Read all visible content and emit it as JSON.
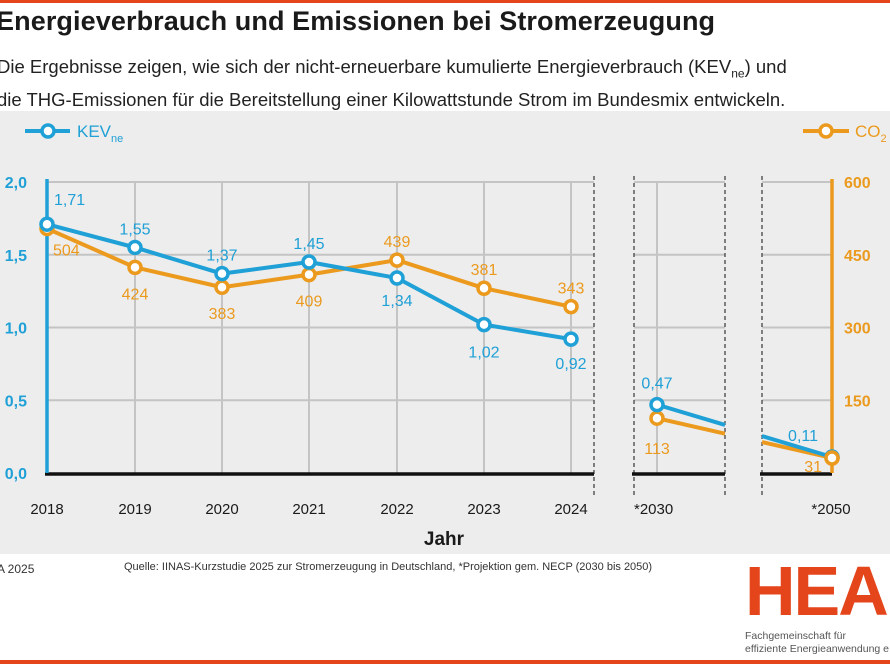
{
  "header": {
    "title": "Energieverbrauch und Emissionen bei Stromerzeugung",
    "subtitle_line1_a": "Die Ergebnisse zeigen, wie sich der nicht-erneuerbare kumulierte Energieverbrauch (KEV",
    "subtitle_line1_sub": "ne",
    "subtitle_line1_b": ") und",
    "subtitle_line2": "die THG-Emissionen für die Bereitstellung einer Kilowattstunde Strom im Bundesmix entwickeln."
  },
  "colors": {
    "kev": "#1fa0d6",
    "co2": "#eb9a1e",
    "brand": "#e4451b",
    "panel": "#ededed",
    "grid": "#c4c4c4"
  },
  "footer": {
    "copyright": "A 2025",
    "source": "Quelle: IINAS-Kurzstudie 2025 zur Stromerzeugung in Deutschland, *Projektion gem. NECP (2030 bis 2050)",
    "logo_text": "HEA",
    "logo_sub_line1": "Fachgemeinschaft für",
    "logo_sub_line2": "effiziente Energieanwendung e."
  },
  "chart_data": {
    "type": "line",
    "title": "Energieverbrauch und Emissionen bei Stromerzeugung",
    "xlabel": "Jahr",
    "categories": [
      "2018",
      "2019",
      "2020",
      "2021",
      "2022",
      "2023",
      "2024",
      "*2030",
      "*2050"
    ],
    "series": [
      {
        "name": "KEV",
        "name_sub": "ne",
        "axis": "left",
        "values": [
          1.71,
          1.55,
          1.37,
          1.45,
          1.34,
          1.02,
          0.92,
          0.47,
          0.11
        ],
        "labels": [
          "1,71",
          "1,55",
          "1,37",
          "1,45",
          "1,34",
          "1,02",
          "0,92",
          "0,47",
          "0,11"
        ]
      },
      {
        "name": "CO",
        "name_sub": "2",
        "axis": "right",
        "values": [
          504,
          424,
          383,
          409,
          439,
          381,
          343,
          113,
          31
        ],
        "labels": [
          "504",
          "424",
          "383",
          "409",
          "439",
          "381",
          "343",
          "113",
          "31"
        ]
      }
    ],
    "y_left": {
      "range": [
        0,
        2.0
      ],
      "ticks": [
        "0,0",
        "0,5",
        "1,0",
        "1,5",
        "2,0"
      ]
    },
    "y_right": {
      "range": [
        0,
        600
      ],
      "ticks": [
        "",
        "150",
        "300",
        "450",
        "600"
      ]
    },
    "grid": true,
    "legend": {
      "kev": "top-left",
      "co2": "top-right"
    },
    "axis_breaks": [
      "between 2024 and *2030",
      "between *2030 and *2050"
    ]
  }
}
